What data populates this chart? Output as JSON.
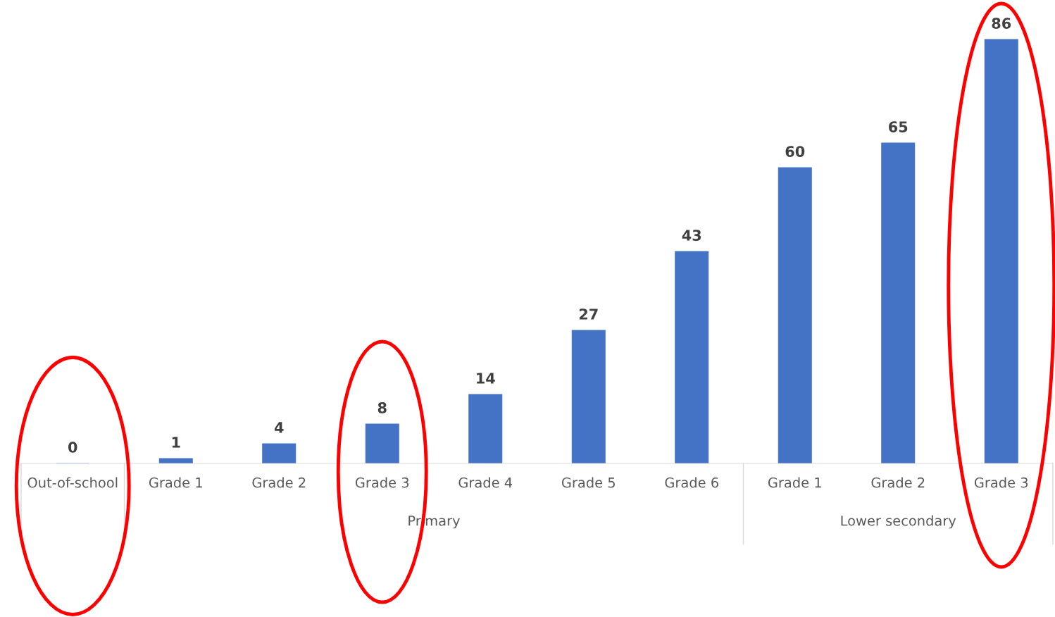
{
  "chart_data": {
    "type": "bar",
    "categories": [
      "Out-of-school",
      "Grade 1",
      "Grade 2",
      "Grade 3",
      "Grade 4",
      "Grade 5",
      "Grade 6",
      "Grade 1",
      "Grade 2",
      "Grade 3"
    ],
    "values": [
      0,
      1,
      4,
      8,
      14,
      27,
      43,
      60,
      65,
      86
    ],
    "color": "#4472c4",
    "data_labels": true,
    "annotations": [
      "Primary",
      "Lower secondary"
    ]
  }
}
